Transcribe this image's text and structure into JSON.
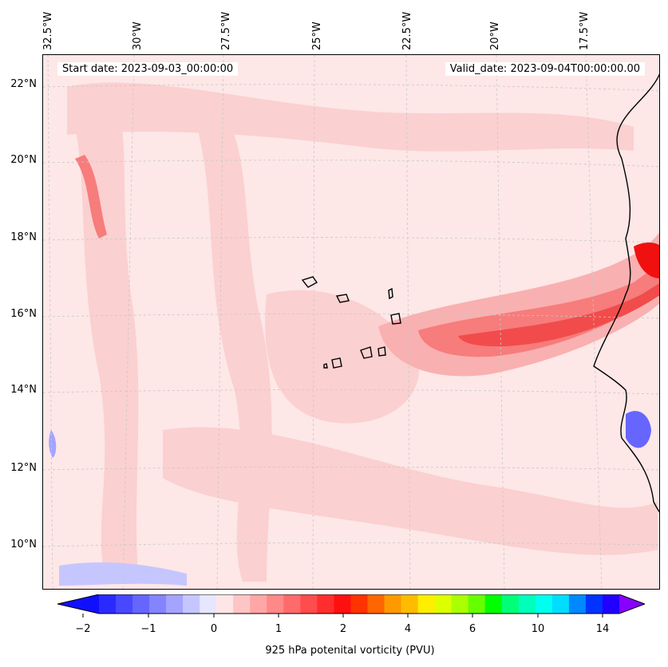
{
  "map": {
    "start_date": "Start date: 2023-09-03_00:00:00",
    "valid_date": "Valid_date: 2023-09-04T00:00:00.00",
    "lon_labels": [
      "32.5°W",
      "30°W",
      "27.5°W",
      "25°W",
      "22.5°W",
      "20°W",
      "17.5°W"
    ],
    "lat_labels": [
      "22°N",
      "20°N",
      "18°N",
      "16°N",
      "14°N",
      "12°N",
      "10°N"
    ],
    "colors": {
      "background": "#fde7e7",
      "light_pink": "#fbd0d0",
      "pink": "#f9b0b0",
      "medium_red": "#f77c7c",
      "red": "#f24b4b",
      "bright_red": "#f01010",
      "coast": "#000000",
      "grid": "#c8c8c8"
    }
  },
  "colorbar": {
    "title": "925 hPa potenital vorticity (PVU)",
    "tick_labels": [
      "−2",
      "−1",
      "0",
      "1",
      "2",
      "4",
      "6",
      "10",
      "14"
    ],
    "colors": [
      "#1010ff",
      "#2a2aff",
      "#4848ff",
      "#6666ff",
      "#8484ff",
      "#a4a4ff",
      "#c6c6ff",
      "#e6e6ff",
      "#ffe6e6",
      "#ffc4c4",
      "#ffa6a6",
      "#ff8888",
      "#ff6a6a",
      "#ff4c4c",
      "#ff2e2e",
      "#ff1010",
      "#ff3300",
      "#ff6600",
      "#ff9900",
      "#ffbb00",
      "#ffee00",
      "#ddff00",
      "#aaff00",
      "#66ff00",
      "#00ff00",
      "#00ff77",
      "#00ffbb",
      "#00ffee",
      "#00ddff",
      "#0088ff",
      "#0033ff",
      "#2200ff",
      "#8800ff"
    ]
  }
}
